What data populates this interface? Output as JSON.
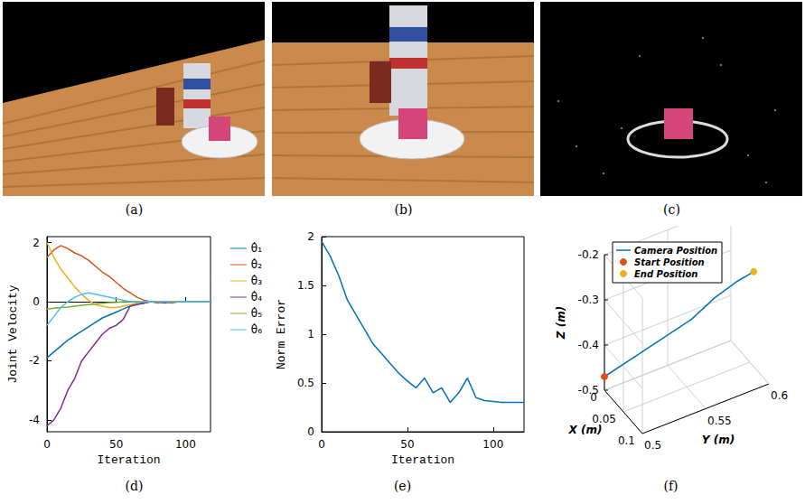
{
  "images": [
    {
      "label": "(a)"
    },
    {
      "label": "(b)"
    },
    {
      "label": "(c)"
    }
  ],
  "chart_data": [
    {
      "label": "(d)",
      "type": "line",
      "x_label": "Iteration",
      "y_label": "Joint Velocity",
      "x": [
        0,
        5,
        10,
        15,
        20,
        25,
        30,
        35,
        40,
        45,
        50,
        55,
        60,
        65,
        70,
        75,
        80,
        85,
        90,
        95,
        100,
        105,
        110,
        115,
        118
      ],
      "xlim": [
        0,
        118
      ],
      "xticks": [
        0,
        50,
        100
      ],
      "ylim": [
        -4.4,
        2.2
      ],
      "yticks": [
        -4,
        -2,
        0,
        2
      ],
      "grid": false,
      "legend": "right",
      "series": [
        {
          "name": "θ̇₁",
          "color": "#0072BD",
          "values": [
            -1.9,
            -1.7,
            -1.5,
            -1.3,
            -1.15,
            -1.0,
            -0.85,
            -0.7,
            -0.55,
            -0.45,
            -0.35,
            -0.25,
            -0.15,
            -0.05,
            -0.05,
            0,
            -0.02,
            0,
            0,
            0,
            0,
            0,
            0,
            0,
            0
          ]
        },
        {
          "name": "θ̇₂",
          "color": "#D95319",
          "values": [
            1.5,
            1.75,
            1.9,
            1.8,
            1.65,
            1.55,
            1.4,
            1.2,
            1.0,
            0.85,
            0.65,
            0.45,
            0.3,
            0.15,
            0.05,
            0,
            -0.05,
            0,
            -0.05,
            0,
            0,
            0,
            0,
            0,
            0
          ]
        },
        {
          "name": "θ̇₃",
          "color": "#EDB120",
          "values": [
            2.0,
            1.5,
            1.1,
            0.8,
            0.5,
            0.25,
            0.05,
            -0.1,
            -0.15,
            -0.2,
            -0.2,
            -0.15,
            -0.1,
            -0.05,
            0,
            0,
            0,
            0,
            0,
            0,
            0,
            0,
            0,
            0,
            0
          ]
        },
        {
          "name": "θ̇₄",
          "color": "#7E2F8E",
          "values": [
            -4.2,
            -4.0,
            -3.6,
            -3.0,
            -2.6,
            -2.0,
            -1.7,
            -1.4,
            -1.1,
            -0.9,
            -0.8,
            -0.6,
            -0.15,
            -0.1,
            -0.05,
            0,
            0,
            -0.05,
            0,
            0,
            0,
            0,
            0,
            0,
            0
          ]
        },
        {
          "name": "θ̇₅",
          "color": "#77AC30",
          "values": [
            -0.25,
            -0.22,
            -0.2,
            -0.18,
            -0.15,
            -0.12,
            -0.1,
            -0.08,
            -0.05,
            -0.03,
            -0.02,
            0,
            0,
            0,
            0,
            0,
            0,
            0,
            0,
            0,
            0,
            0,
            0,
            0,
            0
          ]
        },
        {
          "name": "θ̇₆",
          "color": "#4DBEEE",
          "values": [
            -0.8,
            -0.5,
            -0.2,
            0,
            0.15,
            0.25,
            0.3,
            0.25,
            0.2,
            0.15,
            0.1,
            0.05,
            0,
            0,
            0,
            0,
            0,
            0,
            0,
            0,
            0,
            0,
            0,
            0,
            0
          ]
        }
      ]
    },
    {
      "label": "(e)",
      "type": "line",
      "x_label": "Iteration",
      "y_label": "Norm Error",
      "x": [
        0,
        5,
        10,
        15,
        20,
        25,
        30,
        35,
        40,
        45,
        50,
        55,
        60,
        65,
        70,
        75,
        80,
        85,
        90,
        95,
        100,
        105,
        110,
        115,
        118
      ],
      "xlim": [
        0,
        118
      ],
      "xticks": [
        0,
        50,
        100
      ],
      "ylim": [
        0,
        2
      ],
      "yticks": [
        0,
        0.5,
        1,
        1.5,
        2
      ],
      "grid": false,
      "color": "#0072BD",
      "values": [
        1.95,
        1.8,
        1.6,
        1.35,
        1.2,
        1.05,
        0.9,
        0.8,
        0.7,
        0.6,
        0.52,
        0.45,
        0.55,
        0.4,
        0.45,
        0.3,
        0.4,
        0.55,
        0.35,
        0.32,
        0.31,
        0.3,
        0.3,
        0.3,
        0.3
      ]
    },
    {
      "label": "(f)",
      "type": "line3d",
      "x_label": "X (m)",
      "y_label": "Y (m)",
      "z_label": "Z (m)",
      "xlim": [
        0,
        0.1
      ],
      "xticks": [
        0,
        0.05,
        0.1
      ],
      "ylim": [
        0.5,
        0.6
      ],
      "yticks": [
        0.5,
        0.55,
        0.6
      ],
      "zlim": [
        -0.5,
        -0.2
      ],
      "zticks": [
        -0.5,
        -0.4,
        -0.3,
        -0.2
      ],
      "legend": "upper left",
      "series": [
        {
          "name": "Camera Position",
          "type": "line",
          "color": "#0072BD",
          "x": [
            0,
            0.01,
            0.02,
            0.03,
            0.04,
            0.05,
            0.06
          ],
          "y": [
            0.5,
            0.52,
            0.54,
            0.56,
            0.575,
            0.59,
            0.6
          ],
          "z": [
            -0.47,
            -0.44,
            -0.41,
            -0.38,
            -0.34,
            -0.31,
            -0.29
          ]
        },
        {
          "name": "Start Position",
          "type": "scatter",
          "color": "#D95319",
          "x": [
            0
          ],
          "y": [
            0.5
          ],
          "z": [
            -0.47
          ]
        },
        {
          "name": "End Position",
          "type": "scatter",
          "color": "#EDB120",
          "x": [
            0.06
          ],
          "y": [
            0.6
          ],
          "z": [
            -0.29
          ]
        }
      ]
    }
  ]
}
